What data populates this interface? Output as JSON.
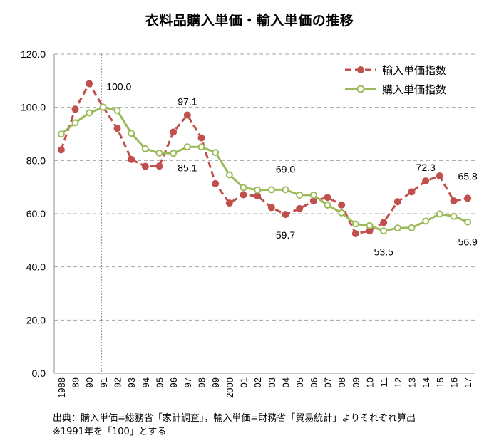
{
  "chart_data": {
    "type": "line",
    "title": "衣料品購入単価・輸入単価の推移",
    "xlabel": "",
    "ylabel": "",
    "ylim": [
      0,
      120
    ],
    "yticks": [
      "0.0",
      "20.0",
      "40.0",
      "60.0",
      "80.0",
      "100.0",
      "120.0"
    ],
    "grid": true,
    "legend": "top-right",
    "categories": [
      "1988",
      "89",
      "90",
      "91",
      "92",
      "93",
      "94",
      "95",
      "96",
      "97",
      "98",
      "99",
      "2000",
      "01",
      "02",
      "03",
      "04",
      "05",
      "06",
      "07",
      "08",
      "09",
      "10",
      "11",
      "12",
      "13",
      "14",
      "15",
      "16",
      "17"
    ],
    "reference_line_category": "91",
    "series": [
      {
        "name": "輸入単価指数",
        "color": "#c0504d",
        "style": "dashed",
        "marker": "filled-circle",
        "values": [
          84.0,
          99.3,
          108.9,
          100.0,
          92.1,
          80.4,
          77.8,
          77.9,
          90.7,
          97.1,
          88.5,
          71.3,
          64.0,
          67.1,
          66.7,
          62.3,
          59.7,
          61.9,
          64.8,
          66.1,
          63.3,
          52.5,
          53.5,
          56.7,
          64.5,
          68.2,
          72.3,
          74.2,
          64.8,
          65.8
        ]
      },
      {
        "name": "購入単価指数",
        "color": "#9bbb59",
        "style": "solid",
        "marker": "open-circle",
        "values": [
          89.9,
          94.2,
          97.9,
          100.0,
          98.8,
          90.2,
          84.4,
          82.8,
          82.7,
          85.1,
          85.1,
          83.0,
          74.6,
          69.8,
          68.9,
          69.0,
          69.0,
          67.0,
          67.0,
          63.2,
          60.3,
          56.1,
          55.5,
          53.5,
          54.6,
          54.7,
          57.2,
          59.9,
          59.0,
          56.9
        ]
      }
    ],
    "annotations": [
      {
        "text": "100.0",
        "category": "91",
        "value": 100.0
      },
      {
        "text": "97.1",
        "category": "97",
        "value": 97.1
      },
      {
        "text": "85.1",
        "category": "97",
        "value": 85.1
      },
      {
        "text": "69.0",
        "category": "04",
        "value": 69.0
      },
      {
        "text": "59.7",
        "category": "04",
        "value": 59.7
      },
      {
        "text": "53.5",
        "category": "11",
        "value": 53.5
      },
      {
        "text": "72.3",
        "category": "14",
        "value": 72.3
      },
      {
        "text": "65.8",
        "category": "17",
        "value": 65.8
      },
      {
        "text": "56.9",
        "category": "17",
        "value": 56.9
      }
    ]
  },
  "source": {
    "line1": "出典：購入単価=総務省「家計調査」，輸入単価=財務省「貿易統計」よりそれぞれ算出",
    "line2": "※1991年を「100」とする"
  }
}
